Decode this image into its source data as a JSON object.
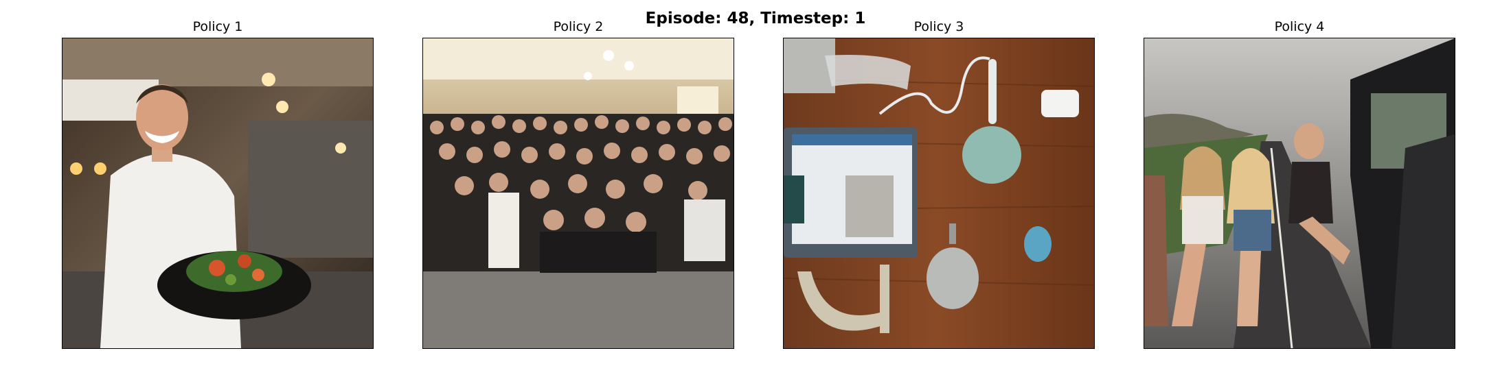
{
  "figure": {
    "title": "Episode: 48, Timestep: 1"
  },
  "panels": [
    {
      "title": "Policy 1",
      "scene": "chef holding a plated dish in a commercial kitchen"
    },
    {
      "title": "Policy 2",
      "scene": "large group of people posing in a banquet hall"
    },
    {
      "title": "Policy 3",
      "scene": "tablet, speaker and accessories on a wooden table"
    },
    {
      "title": "Policy 4",
      "scene": "women sitting on a road beside an open car door"
    }
  ]
}
